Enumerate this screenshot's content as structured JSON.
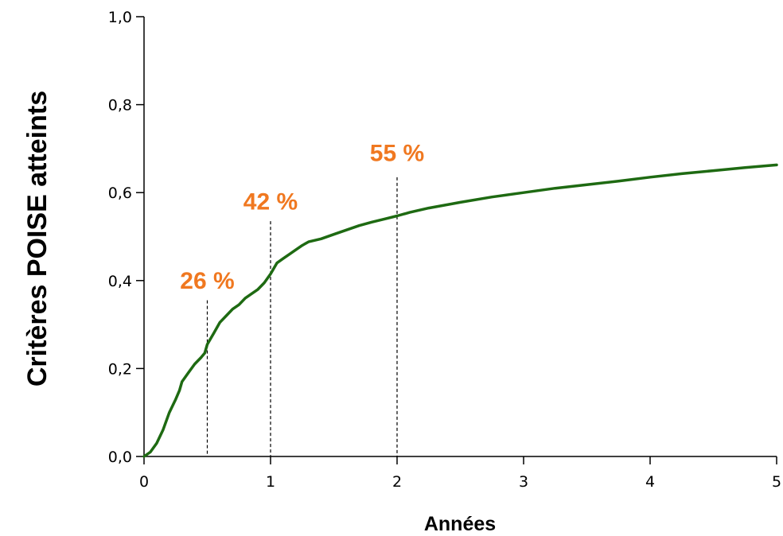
{
  "chart_data": {
    "type": "line",
    "title": "",
    "xlabel": "Années",
    "ylabel": "Critères POISE atteints",
    "xlim": [
      0,
      5
    ],
    "ylim": [
      0,
      1.0
    ],
    "x_ticks": [
      0,
      1,
      2,
      3,
      4,
      5
    ],
    "x_tick_labels": [
      "0",
      "1",
      "2",
      "3",
      "4",
      "5"
    ],
    "y_ticks": [
      0,
      0.2,
      0.4,
      0.6,
      0.8,
      1.0
    ],
    "y_tick_labels": [
      "0,0",
      "0,2",
      "0,4",
      "0,6",
      "0,8",
      "1,0"
    ],
    "grid": false,
    "series": [
      {
        "color": "#1e6a12",
        "x": [
          0,
          0.05,
          0.1,
          0.15,
          0.2,
          0.25,
          0.28,
          0.3,
          0.35,
          0.4,
          0.45,
          0.48,
          0.5,
          0.55,
          0.6,
          0.65,
          0.7,
          0.75,
          0.8,
          0.85,
          0.9,
          0.95,
          1.0,
          1.05,
          1.1,
          1.15,
          1.2,
          1.25,
          1.3,
          1.4,
          1.5,
          1.6,
          1.7,
          1.8,
          1.9,
          2.0,
          2.1,
          2.25,
          2.5,
          2.75,
          3.0,
          3.25,
          3.5,
          3.75,
          4.0,
          4.25,
          4.5,
          4.75,
          5.0
        ],
        "y": [
          0.0,
          0.01,
          0.03,
          0.06,
          0.1,
          0.13,
          0.15,
          0.17,
          0.19,
          0.21,
          0.225,
          0.235,
          0.255,
          0.28,
          0.305,
          0.32,
          0.335,
          0.345,
          0.36,
          0.37,
          0.38,
          0.395,
          0.415,
          0.44,
          0.45,
          0.46,
          0.47,
          0.48,
          0.488,
          0.495,
          0.505,
          0.515,
          0.525,
          0.533,
          0.54,
          0.547,
          0.555,
          0.565,
          0.578,
          0.59,
          0.6,
          0.61,
          0.618,
          0.626,
          0.635,
          0.643,
          0.65,
          0.657,
          0.663
        ]
      }
    ],
    "reference_lines": [
      {
        "x": 0.5,
        "y_top": 0.355
      },
      {
        "x": 1.0,
        "y_top": 0.535
      },
      {
        "x": 2.0,
        "y_top": 0.635
      }
    ],
    "annotations": [
      {
        "text": "26 %",
        "x": 0.5,
        "y": 0.4,
        "color": "#f07820"
      },
      {
        "text": "42 %",
        "x": 1.0,
        "y": 0.58,
        "color": "#f07820"
      },
      {
        "text": "55 %",
        "x": 2.0,
        "y": 0.69,
        "color": "#f07820"
      }
    ]
  }
}
